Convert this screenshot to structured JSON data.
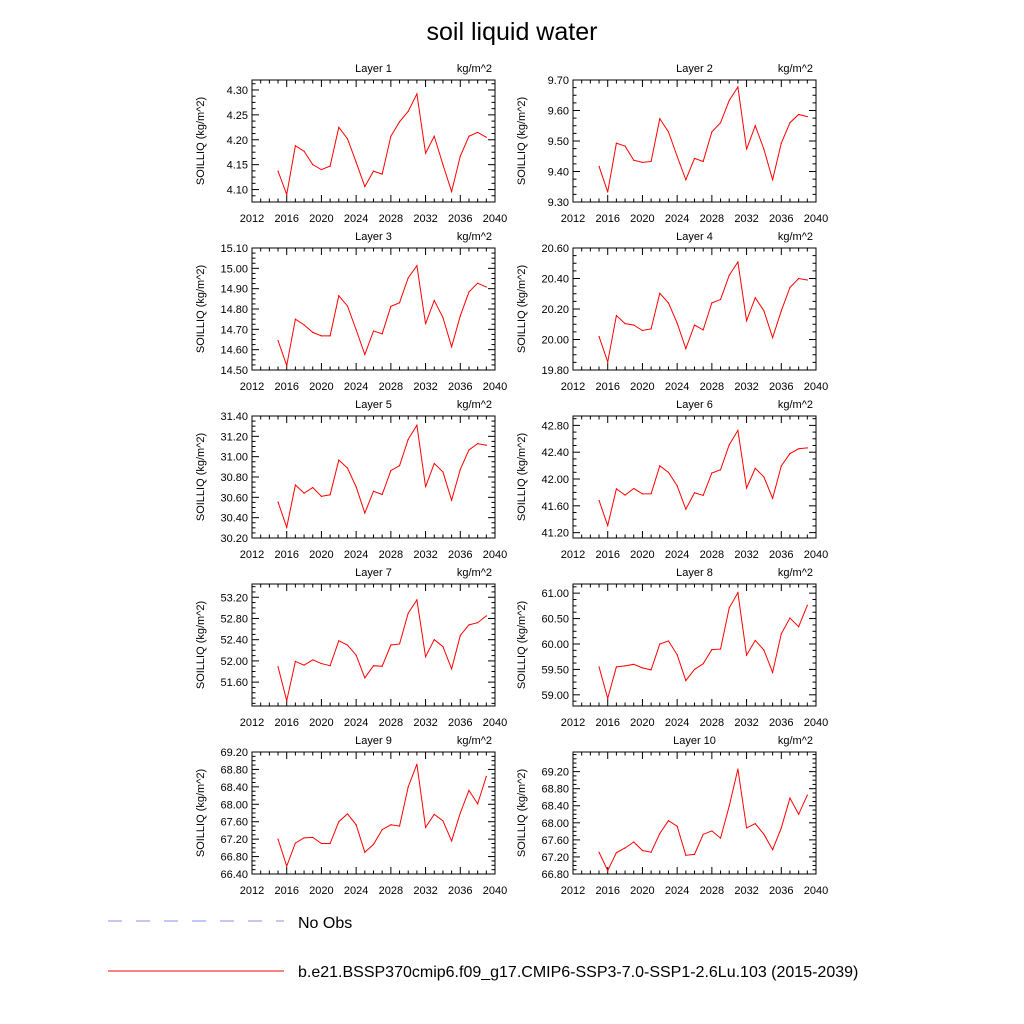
{
  "title": "soil liquid water",
  "legend": {
    "obs_label": "No Obs",
    "model_label": "b.e21.BSSP370cmip6.f09_g17.CMIP6-SSP3-7.0-SSP1-2.6Lu.103 (2015-2039)",
    "obs_color": "#8c8cff",
    "model_color": "#ff0000"
  },
  "chart_data": {
    "type": "line",
    "years": [
      2015,
      2016,
      2017,
      2018,
      2019,
      2020,
      2021,
      2022,
      2023,
      2024,
      2025,
      2026,
      2027,
      2028,
      2029,
      2030,
      2031,
      2032,
      2033,
      2034,
      2035,
      2036,
      2037,
      2038,
      2039
    ],
    "xlim": [
      2012,
      2040
    ],
    "xticks": [
      "2012",
      "2016",
      "2020",
      "2024",
      "2028",
      "2032",
      "2036",
      "2040"
    ],
    "ylabel": "SOILLIQ  (kg/m^2)",
    "units": "kg/m^2",
    "line_color": "#ff0000",
    "panels": [
      {
        "name": "Layer 1",
        "ylim": [
          4.075,
          4.32
        ],
        "yticks": [
          "4.10",
          "4.15",
          "4.20",
          "4.25",
          "4.30"
        ],
        "values": [
          4.137,
          4.09,
          4.188,
          4.177,
          4.15,
          4.14,
          4.147,
          4.225,
          4.202,
          4.155,
          4.106,
          4.137,
          4.131,
          4.207,
          4.236,
          4.257,
          4.292,
          4.173,
          4.207,
          4.15,
          4.096,
          4.167,
          4.207,
          4.215,
          4.205
        ]
      },
      {
        "name": "Layer 2",
        "ylim": [
          9.3,
          9.7
        ],
        "yticks": [
          "9.30",
          "9.40",
          "9.50",
          "9.60",
          "9.70"
        ],
        "values": [
          9.417,
          9.333,
          9.493,
          9.483,
          9.437,
          9.43,
          9.433,
          9.573,
          9.53,
          9.45,
          9.373,
          9.443,
          9.433,
          9.53,
          9.56,
          9.633,
          9.677,
          9.473,
          9.55,
          9.473,
          9.373,
          9.493,
          9.56,
          9.587,
          9.58
        ]
      },
      {
        "name": "Layer 3",
        "ylim": [
          14.5,
          15.1
        ],
        "yticks": [
          "14.50",
          "14.60",
          "14.70",
          "14.80",
          "14.90",
          "15.00",
          "15.10"
        ],
        "values": [
          14.645,
          14.522,
          14.75,
          14.722,
          14.685,
          14.668,
          14.668,
          14.865,
          14.815,
          14.698,
          14.576,
          14.692,
          14.678,
          14.813,
          14.831,
          14.953,
          15.013,
          14.727,
          14.842,
          14.758,
          14.614,
          14.766,
          14.884,
          14.927,
          14.908
        ]
      },
      {
        "name": "Layer 4",
        "ylim": [
          19.8,
          20.6
        ],
        "yticks": [
          "19.80",
          "20.00",
          "20.20",
          "20.40",
          "20.60"
        ],
        "values": [
          20.02,
          19.852,
          20.157,
          20.104,
          20.095,
          20.059,
          20.07,
          20.303,
          20.24,
          20.108,
          19.94,
          20.095,
          20.063,
          20.24,
          20.262,
          20.421,
          20.508,
          20.123,
          20.274,
          20.188,
          20.012,
          20.188,
          20.341,
          20.4,
          20.39
        ]
      },
      {
        "name": "Layer 5",
        "ylim": [
          30.2,
          31.4
        ],
        "yticks": [
          "30.20",
          "30.40",
          "30.60",
          "30.80",
          "31.00",
          "31.20",
          "31.40"
        ],
        "values": [
          30.553,
          30.305,
          30.721,
          30.641,
          30.696,
          30.61,
          30.625,
          30.966,
          30.888,
          30.703,
          30.446,
          30.66,
          30.628,
          30.863,
          30.911,
          31.17,
          31.309,
          30.703,
          30.933,
          30.85,
          30.571,
          30.875,
          31.066,
          31.128,
          31.112
        ]
      },
      {
        "name": "Layer 6",
        "ylim": [
          41.12,
          42.94
        ],
        "yticks": [
          "41.20",
          "41.60",
          "42.00",
          "42.40",
          "42.80"
        ],
        "values": [
          41.68,
          41.306,
          41.853,
          41.76,
          41.859,
          41.778,
          41.78,
          42.196,
          42.1,
          41.9,
          41.55,
          41.795,
          41.755,
          42.09,
          42.138,
          42.51,
          42.725,
          41.865,
          42.16,
          42.03,
          41.712,
          42.194,
          42.38,
          42.451,
          42.464
        ]
      },
      {
        "name": "Layer 7",
        "ylim": [
          51.15,
          53.45
        ],
        "yticks": [
          "51.60",
          "52.00",
          "52.40",
          "52.80",
          "53.20"
        ],
        "values": [
          51.89,
          51.25,
          51.99,
          51.92,
          52.02,
          51.95,
          51.91,
          52.38,
          52.3,
          52.11,
          51.68,
          51.91,
          51.9,
          52.3,
          52.32,
          52.9,
          53.15,
          52.08,
          52.4,
          52.27,
          51.85,
          52.48,
          52.68,
          52.72,
          52.85
        ]
      },
      {
        "name": "Layer 8",
        "ylim": [
          58.78,
          61.18
        ],
        "yticks": [
          "59.00",
          "59.50",
          "60.00",
          "60.50",
          "61.00"
        ],
        "values": [
          59.55,
          58.93,
          59.55,
          59.57,
          59.6,
          59.53,
          59.49,
          60.0,
          60.06,
          59.79,
          59.28,
          59.5,
          59.61,
          59.89,
          59.9,
          60.71,
          61.01,
          59.78,
          60.07,
          59.88,
          59.44,
          60.2,
          60.51,
          60.34,
          60.76
        ]
      },
      {
        "name": "Layer 9",
        "ylim": [
          66.4,
          69.2
        ],
        "yticks": [
          "66.40",
          "66.80",
          "67.20",
          "67.60",
          "68.00",
          "68.40",
          "68.80",
          "69.20"
        ],
        "values": [
          67.2,
          66.58,
          67.11,
          67.23,
          67.24,
          67.1,
          67.1,
          67.6,
          67.78,
          67.53,
          66.9,
          67.08,
          67.42,
          67.53,
          67.5,
          68.4,
          68.92,
          67.47,
          67.77,
          67.62,
          67.16,
          67.8,
          68.32,
          68.01,
          68.64
        ]
      },
      {
        "name": "Layer 10",
        "ylim": [
          66.8,
          69.66
        ],
        "yticks": [
          "66.80",
          "67.20",
          "67.60",
          "68.00",
          "68.40",
          "68.80",
          "69.20"
        ],
        "values": [
          67.31,
          66.88,
          67.3,
          67.41,
          67.55,
          67.35,
          67.31,
          67.75,
          68.05,
          67.92,
          67.24,
          67.26,
          67.73,
          67.81,
          67.64,
          68.39,
          69.26,
          67.88,
          67.98,
          67.73,
          67.37,
          67.88,
          68.58,
          68.2,
          68.65
        ]
      }
    ]
  }
}
